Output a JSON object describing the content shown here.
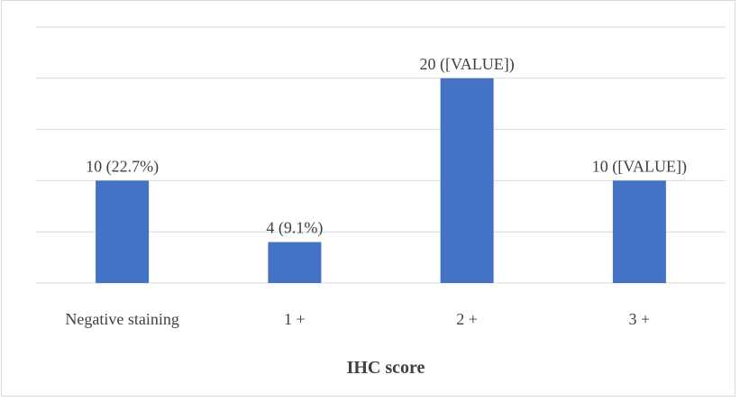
{
  "chart_data": {
    "type": "bar",
    "categories": [
      "Negative staining",
      "1 +",
      "2 +",
      "3 +"
    ],
    "values": [
      10,
      4,
      20,
      10
    ],
    "data_labels": [
      "10 (22.7%)",
      "4 (9.1%)",
      "20 ([VALUE])",
      "10 ([VALUE])"
    ],
    "title": "",
    "xlabel": "IHC score",
    "ylabel": "",
    "ylim": [
      0,
      25
    ],
    "grid": true,
    "legend": "none",
    "bar_color": "#4472c4",
    "grid_color": "#d9d9d9",
    "text_color": "#404040"
  }
}
